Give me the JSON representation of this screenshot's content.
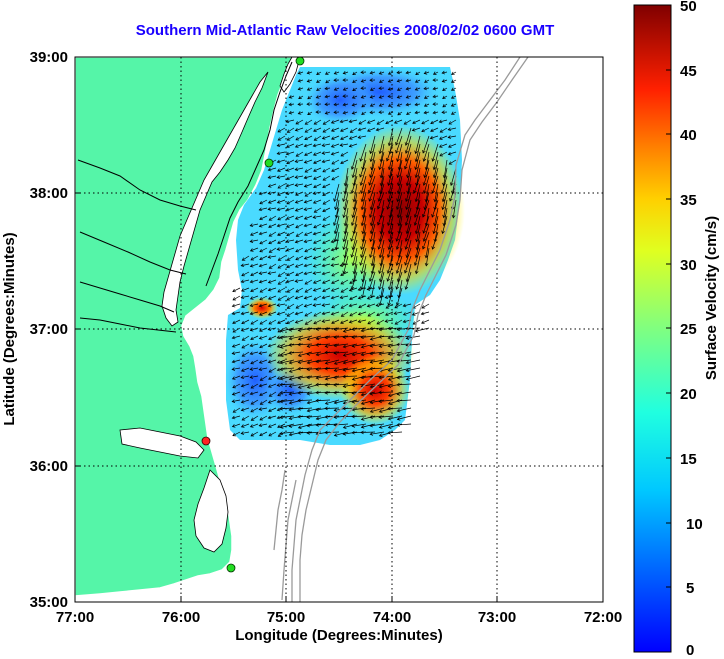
{
  "title": "Southern Mid-Atlantic Raw Velocities 2008/02/02 0600 GMT",
  "x_axis": {
    "label": "Longitude (Degrees:Minutes)",
    "ticks": [
      "77:00",
      "76:00",
      "75:00",
      "74:00",
      "73:00",
      "72:00"
    ]
  },
  "y_axis": {
    "label": "Latitude (Degrees:Minutes)",
    "ticks": [
      "39:00",
      "38:00",
      "37:00",
      "36:00",
      "35:00"
    ]
  },
  "colorbar": {
    "label": "Surface Velocity (cm/s)",
    "ticks": [
      "50",
      "45",
      "40",
      "35",
      "30",
      "25",
      "20",
      "15",
      "10",
      "5",
      "0"
    ],
    "range": [
      0,
      50
    ],
    "colormap": "jet"
  },
  "map_data": {
    "lon_range": [
      -77,
      -72
    ],
    "lat_range": [
      35,
      39
    ],
    "grid_lines": "dotted",
    "land_color": "#55f5a8",
    "water_color": "#ffffff",
    "bathymetry_color": "#9a9a9a",
    "station_markers": [
      {
        "color": "#22dd22",
        "lon": -74.85,
        "lat": 38.98
      },
      {
        "color": "#22dd22",
        "lon": -75.15,
        "lat": 38.22
      },
      {
        "color": "#ff2222",
        "lon": -75.78,
        "lat": 36.18
      },
      {
        "color": "#22dd22",
        "lon": -75.55,
        "lat": 35.25
      }
    ],
    "velocity_field": [
      {
        "region": "north",
        "speed_cm_s": 8
      },
      {
        "region": "central-west",
        "speed_cm_s": 14
      },
      {
        "region": "east-core",
        "speed_cm_s": 48
      },
      {
        "region": "south-core",
        "speed_cm_s": 40
      },
      {
        "region": "southwest",
        "speed_cm_s": 6
      }
    ]
  }
}
